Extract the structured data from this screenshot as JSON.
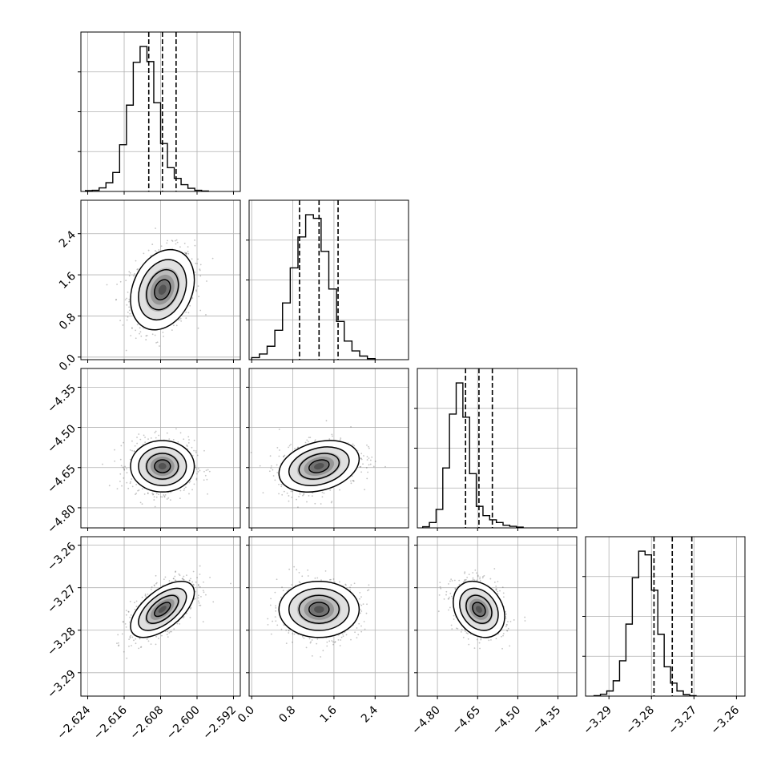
{
  "chart_data": {
    "type": "corner",
    "title": "",
    "parameters": [
      {
        "label": "",
        "range": [
          -2.6255,
          -2.5905
        ],
        "ticks": [
          -2.624,
          -2.616,
          -2.608,
          -2.6,
          -2.592
        ],
        "tick_labels": [
          "−2.624",
          "−2.616",
          "−2.608",
          "−2.600",
          "−2.592"
        ],
        "quantiles": [
          -2.6106,
          -2.6076,
          -2.6046
        ],
        "histogram": {
          "edges_start": -2.6245,
          "bin_width": 0.0015,
          "counts": [
            2,
            3,
            9,
            22,
            48,
            118,
            218,
            326,
            366,
            328,
            224,
            121,
            60,
            33,
            17,
            8,
            3,
            1
          ]
        }
      },
      {
        "label": "",
        "range": [
          -0.05,
          3.05
        ],
        "ticks": [
          0.0,
          0.8,
          1.6,
          2.4
        ],
        "tick_labels": [
          "0.0",
          "0.8",
          "1.6",
          "2.4"
        ],
        "quantiles": [
          0.93,
          1.31,
          1.68
        ],
        "histogram": {
          "edges_start": 0.0,
          "bin_width": 0.15,
          "counts": [
            4,
            11,
            26,
            57,
            110,
            178,
            238,
            281,
            274,
            210,
            137,
            74,
            36,
            17,
            7,
            2
          ]
        }
      },
      {
        "label": "",
        "range": [
          -4.875,
          -4.28
        ],
        "ticks": [
          -4.8,
          -4.65,
          -4.5,
          -4.35
        ],
        "tick_labels": [
          "−4.80",
          "−4.65",
          "−4.50",
          "−4.35"
        ],
        "quantiles": [
          -4.695,
          -4.645,
          -4.595
        ],
        "histogram": {
          "edges_start": -4.855,
          "bin_width": 0.025,
          "counts": [
            3,
            14,
            48,
            156,
            296,
            377,
            288,
            141,
            56,
            32,
            21,
            14,
            7,
            4,
            2
          ]
        }
      },
      {
        "label": "",
        "range": [
          -3.2955,
          -3.258
        ],
        "ticks": [
          -3.29,
          -3.28,
          -3.27,
          -3.26
        ],
        "tick_labels": [
          "−3.29",
          "−3.28",
          "−3.27",
          "−3.26"
        ],
        "quantiles": [
          -3.2794,
          -3.2751,
          -3.2705
        ],
        "histogram": {
          "edges_start": -3.2935,
          "bin_width": 0.0015,
          "counts": [
            1,
            4,
            11,
            33,
            76,
            155,
            255,
            312,
            304,
            228,
            133,
            63,
            28,
            11,
            3,
            1
          ]
        }
      }
    ],
    "pairs": [
      {
        "row": 1,
        "col": 0,
        "mean": [
          -2.6076,
          1.31
        ],
        "sd": [
          0.0035,
          0.39
        ],
        "rho": 0.25
      },
      {
        "row": 2,
        "col": 0,
        "mean": [
          -2.6076,
          -4.645
        ],
        "sd": [
          0.0035,
          0.048
        ],
        "rho": 0.0
      },
      {
        "row": 2,
        "col": 1,
        "mean": [
          1.31,
          -4.645
        ],
        "sd": [
          0.39,
          0.048
        ],
        "rho": 0.28
      },
      {
        "row": 3,
        "col": 0,
        "mean": [
          -2.6076,
          -3.2751
        ],
        "sd": [
          0.0035,
          0.0033
        ],
        "rho": 0.6
      },
      {
        "row": 3,
        "col": 1,
        "mean": [
          1.31,
          -3.2751
        ],
        "sd": [
          0.39,
          0.0033
        ],
        "rho": 0.0
      },
      {
        "row": 3,
        "col": 2,
        "mean": [
          -4.645,
          -3.2751
        ],
        "sd": [
          0.048,
          0.0033
        ],
        "rho": -0.25
      }
    ],
    "contour_levels_sigma": [
      0.5,
      1.0,
      1.5,
      2.0
    ],
    "grid": true,
    "colors": {
      "ink": "#000000",
      "grid": "#b0b0b0",
      "density": "#000000",
      "scatter": "#555555"
    }
  }
}
